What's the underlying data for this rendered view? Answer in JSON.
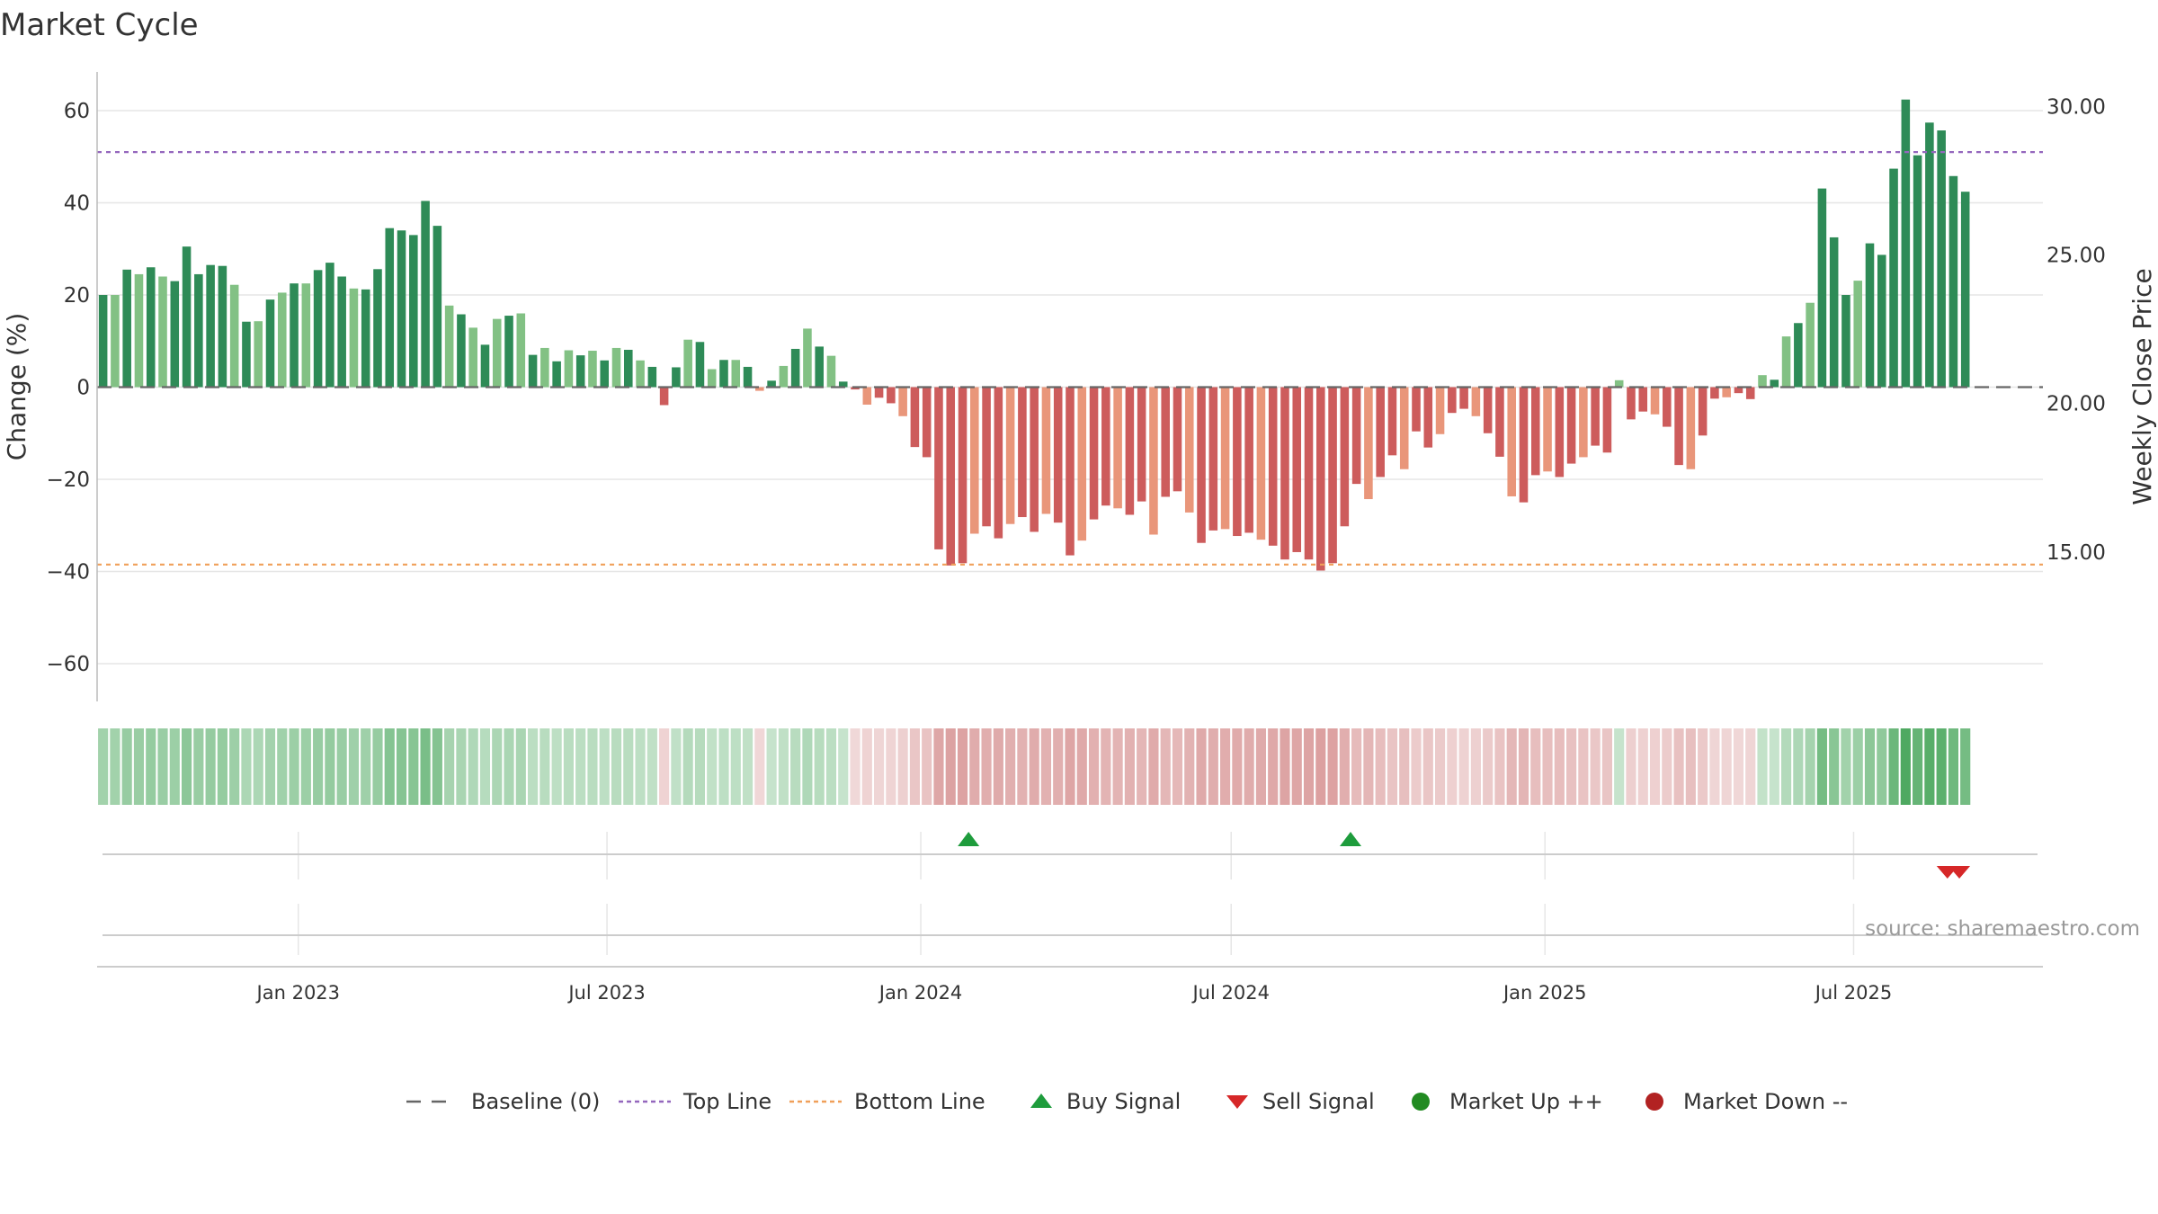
{
  "title": "Market Cycle",
  "watermark": "source: sharemaestro.com",
  "colors": {
    "baseline": "#666666",
    "top_line": "#9467bd",
    "bottom_line": "#f0a05a",
    "pos_strong": "#2e8b57",
    "pos_weak": "#82c184",
    "neg_strong": "#cd5c5c",
    "neg_weak": "#e9967a",
    "buy": "#1e9c3c",
    "sell": "#d62728",
    "market_up": "#228b22",
    "market_down": "#b22222",
    "grid": "#e6e6e6"
  },
  "chart_data": {
    "type": "bar",
    "title": "Market Cycle",
    "ylabel": "Change (%)",
    "y2label": "Weekly Close Price",
    "ylim": [
      -68,
      68
    ],
    "y2lim": [
      10,
      31.1
    ],
    "yticks": [
      "60",
      "40",
      "20",
      "0",
      "−20",
      "−40",
      "−60"
    ],
    "ytick_values": [
      60,
      40,
      20,
      0,
      -20,
      -40,
      -60
    ],
    "y2ticks": [
      "30.00",
      "25.00",
      "20.00",
      "15.00"
    ],
    "y2tick_values": [
      30,
      25,
      20,
      15
    ],
    "x_start": "2022-09-05",
    "x_end": "2025-10-20",
    "xticks": [
      {
        "label": "Jan 2023",
        "date": "2023-01-01"
      },
      {
        "label": "Jul 2023",
        "date": "2023-07-01"
      },
      {
        "label": "Jan 2024",
        "date": "2024-01-01"
      },
      {
        "label": "Jul 2024",
        "date": "2024-07-01"
      },
      {
        "label": "Jan 2025",
        "date": "2025-01-01"
      },
      {
        "label": "Jul 2025",
        "date": "2025-07-01"
      }
    ],
    "first_week": "2022-09-05",
    "top_line": 51,
    "bottom_line": -38.5,
    "values": [
      20,
      20,
      25.5,
      24.5,
      26,
      24,
      23,
      30.5,
      24.5,
      26.5,
      26.3,
      22.2,
      14.2,
      14.3,
      19,
      20.5,
      22.5,
      22.5,
      25.4,
      27,
      24,
      21.4,
      21.2,
      25.6,
      34.5,
      34,
      33,
      40.4,
      35,
      17.7,
      15.8,
      12.9,
      9.2,
      14.8,
      15.5,
      16,
      7,
      8.5,
      5.6,
      8,
      6.9,
      7.9,
      5.8,
      8.5,
      8.1,
      5.8,
      4.4,
      -3.9,
      4.3,
      10.3,
      9.8,
      3.9,
      5.9,
      5.9,
      4.4,
      -0.8,
      1.4,
      4.6,
      8.3,
      12.7,
      8.8,
      6.8,
      1.2,
      -0.5,
      -3.8,
      -2.3,
      -3.5,
      -6.3,
      -13,
      -15.2,
      -35.2,
      -38.7,
      -38.2,
      -31.8,
      -30.2,
      -32.8,
      -29.7,
      -28.2,
      -31.4,
      -27.5,
      -29.4,
      -36.5,
      -33.3,
      -28.7,
      -25.7,
      -26.3,
      -27.7,
      -24.8,
      -32,
      -23.8,
      -22.6,
      -27.2,
      -33.8,
      -31.1,
      -30.8,
      -32.3,
      -31.6,
      -33.1,
      -34.4,
      -37.4,
      -35.8,
      -37.4,
      -39.8,
      -38.2,
      -30.2,
      -21,
      -24.3,
      -19.5,
      -14.8,
      -17.8,
      -9.6,
      -13.1,
      -10.2,
      -5.6,
      -4.7,
      -6.3,
      -10,
      -15.1,
      -23.7,
      -25,
      -19.1,
      -18.3,
      -19.5,
      -16.6,
      -15.2,
      -12.7,
      -14.2,
      1.5,
      -7,
      -5.3,
      -5.9,
      -8.6,
      -16.9,
      -17.8,
      -10.5,
      -2.5,
      -2.2,
      -1.3,
      -2.6,
      2.6,
      1.6,
      11,
      13.9,
      18.3,
      43.1,
      32.5,
      20,
      23.1,
      31.2,
      28.7,
      47.4,
      62.4,
      50.3,
      57.4,
      55.7,
      45.8,
      42.4
    ],
    "weekly_close_color_band": true,
    "buy_signals": [
      "2024-01-29",
      "2024-09-09"
    ],
    "sell_signals": [
      "2025-08-25",
      "2025-09-01"
    ],
    "legend": [
      {
        "label": "Baseline (0)",
        "symbol": "dash",
        "color": "#666666"
      },
      {
        "label": "Top Line",
        "symbol": "dot",
        "color": "#9467bd"
      },
      {
        "label": "Bottom Line",
        "symbol": "dot",
        "color": "#f0a05a"
      },
      {
        "label": "Buy Signal",
        "symbol": "triangle-up",
        "color": "#1e9c3c"
      },
      {
        "label": "Sell Signal",
        "symbol": "triangle-down",
        "color": "#d62728"
      },
      {
        "label": "Market Up ++",
        "symbol": "circle",
        "color": "#228b22"
      },
      {
        "label": "Market Down --",
        "symbol": "circle",
        "color": "#b22222"
      }
    ],
    "legend_position": "bottom-center",
    "grid": true
  }
}
